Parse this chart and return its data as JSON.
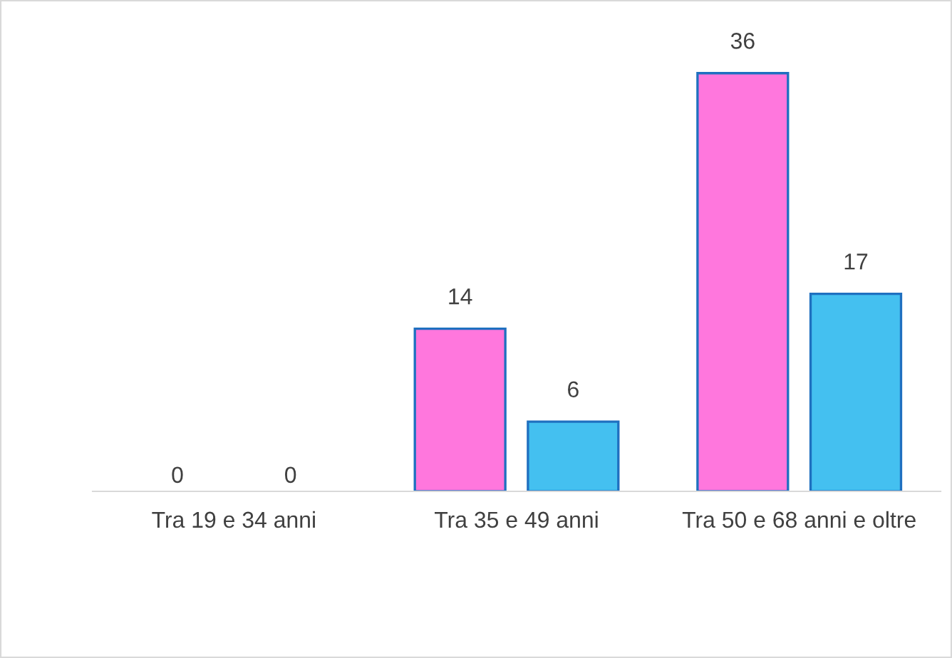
{
  "chart_data": {
    "type": "bar",
    "categories": [
      "Tra 19 e 34 anni",
      "Tra 35 e 49 anni",
      "Tra 50 e 68 anni e oltre"
    ],
    "series": [
      {
        "color": "#ff77dd",
        "values": [
          0,
          14,
          36
        ]
      },
      {
        "color": "#44c0f0",
        "values": [
          0,
          6,
          17
        ]
      }
    ],
    "data_labels": true,
    "grid": false,
    "legend": false
  }
}
